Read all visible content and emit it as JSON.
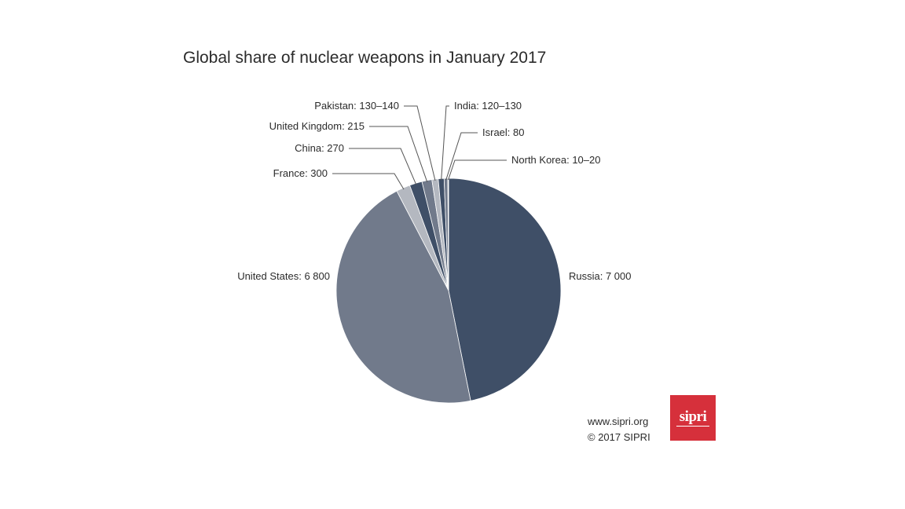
{
  "chart_data": {
    "type": "pie",
    "title": "Global share of nuclear weapons in January 2017",
    "slices": [
      {
        "name": "Russia",
        "label": "Russia: 7 000",
        "value": 7000,
        "color": "#3f4f67"
      },
      {
        "name": "United States",
        "label": "United States: 6 800",
        "value": 6800,
        "color": "#717a8b"
      },
      {
        "name": "France",
        "label": "France: 300",
        "value": 300,
        "color": "#b4b8c0"
      },
      {
        "name": "China",
        "label": "China: 270",
        "value": 270,
        "color": "#3f4f67"
      },
      {
        "name": "United Kingdom",
        "label": "United Kingdom: 215",
        "value": 215,
        "color": "#717a8b"
      },
      {
        "name": "Pakistan",
        "label": "Pakistan: 130–140",
        "value": 135,
        "color": "#b4b8c0"
      },
      {
        "name": "India",
        "label": "India: 120–130",
        "value": 125,
        "color": "#3f4f67"
      },
      {
        "name": "Israel",
        "label": "Israel: 80",
        "value": 80,
        "color": "#717a8b"
      },
      {
        "name": "North Korea",
        "label": "North Korea: 10–20",
        "value": 15,
        "color": "#b4b8c0"
      }
    ]
  },
  "footer": {
    "url": "www.sipri.org",
    "copyright": "© 2017 SIPRI",
    "logo_text": "sipri"
  }
}
